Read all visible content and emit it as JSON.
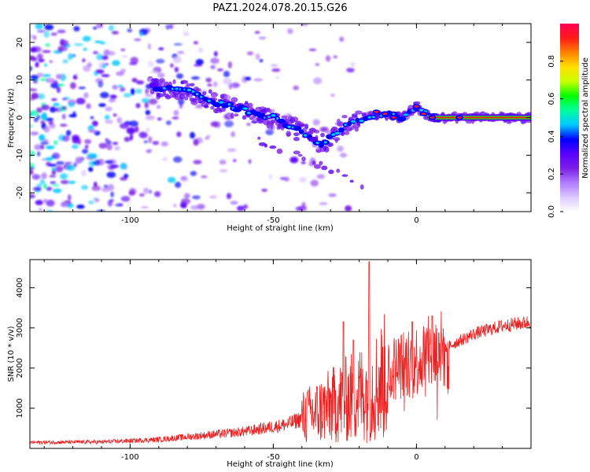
{
  "figure": {
    "title": "PAZ1.2024.078.20.15.G26"
  },
  "chart_data": [
    {
      "type": "heatmap",
      "xlabel": "Height of straight line (km)",
      "ylabel": "Frequency (Hz)",
      "xlim": [
        -135,
        40
      ],
      "ylim": [
        -25,
        25
      ],
      "xticks": [
        -100,
        -50,
        0
      ],
      "yticks": [
        -20,
        -10,
        0,
        10,
        20
      ],
      "colorbar": {
        "label": "Normalized spectral amplitude",
        "range": [
          0,
          1
        ],
        "ticks": [
          "0.0",
          "0.2",
          "0.4",
          "0.6",
          "0.8"
        ],
        "colormap": [
          "#ffffff",
          "#dcc8ff",
          "#b07cff",
          "#7b1fe6",
          "#5a00ff",
          "#0000ff",
          "#00c8ff",
          "#00ffa0",
          "#00ff00",
          "#c8ff00",
          "#ffe000",
          "#ff8000",
          "#ff1a1a",
          "#ff0055"
        ]
      },
      "ridge": [
        {
          "x": -92,
          "y": 8
        },
        {
          "x": -80,
          "y": 7
        },
        {
          "x": -70,
          "y": 4
        },
        {
          "x": -60,
          "y": 2
        },
        {
          "x": -50,
          "y": 0
        },
        {
          "x": -40,
          "y": -4
        },
        {
          "x": -33,
          "y": -7
        },
        {
          "x": -25,
          "y": -2
        },
        {
          "x": -18,
          "y": 0
        },
        {
          "x": -12,
          "y": 1
        },
        {
          "x": -5,
          "y": 0
        },
        {
          "x": 0,
          "y": 3
        },
        {
          "x": 5,
          "y": 0
        },
        {
          "x": 15,
          "y": 0
        },
        {
          "x": 40,
          "y": 0
        }
      ]
    },
    {
      "type": "line",
      "xlabel": "Height of straight line (km)",
      "ylabel": "SNR (10 * v/v)",
      "xlim": [
        -135,
        40
      ],
      "ylim": [
        0,
        4700
      ],
      "xticks": [
        -100,
        -50,
        0
      ],
      "yticks": [
        1000,
        2000,
        3000,
        4000
      ],
      "series_color": "#e82222",
      "envelope": [
        {
          "x": -135,
          "snr": 150
        },
        {
          "x": -110,
          "snr": 160
        },
        {
          "x": -90,
          "snr": 220
        },
        {
          "x": -75,
          "snr": 320
        },
        {
          "x": -60,
          "snr": 420
        },
        {
          "x": -45,
          "snr": 600
        },
        {
          "x": -35,
          "snr": 900
        },
        {
          "x": -25,
          "snr": 1200
        },
        {
          "x": -15,
          "snr": 1500
        },
        {
          "x": -8,
          "snr": 2000
        },
        {
          "x": 0,
          "snr": 2200
        },
        {
          "x": 10,
          "snr": 2500
        },
        {
          "x": 20,
          "snr": 2850
        },
        {
          "x": 30,
          "snr": 3050
        },
        {
          "x": 40,
          "snr": 3150
        }
      ],
      "spikes": [
        {
          "x": -16.5,
          "snr": 4650
        },
        {
          "x": -25.5,
          "snr": 3150
        },
        {
          "x": -22,
          "snr": 2700
        },
        {
          "x": -1.5,
          "snr": 3150
        },
        {
          "x": 5.5,
          "snr": 3300
        },
        {
          "x": -38,
          "snr": 1400
        }
      ]
    }
  ]
}
